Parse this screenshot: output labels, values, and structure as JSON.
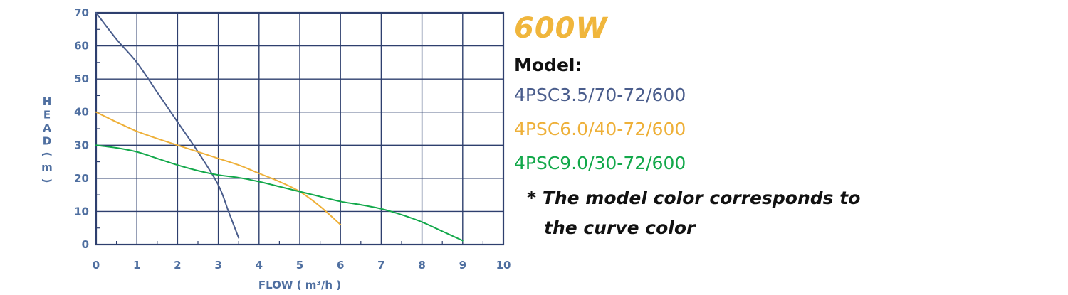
{
  "chart_data": {
    "type": "line",
    "xlabel": "FLOW ( m³/h )",
    "ylabel": "HEAD ( m )",
    "xlim": [
      0,
      10
    ],
    "ylim": [
      0,
      70
    ],
    "xticks": [
      0,
      1,
      2,
      3,
      4,
      5,
      6,
      7,
      8,
      9,
      10
    ],
    "yticks": [
      0,
      10,
      20,
      30,
      40,
      50,
      60,
      70
    ],
    "grid": true,
    "series": [
      {
        "name": "4PSC3.5/70-72/600",
        "color": "#4a5d8c",
        "points": [
          [
            0,
            70
          ],
          [
            0.5,
            62
          ],
          [
            1,
            55
          ],
          [
            1.5,
            46
          ],
          [
            2,
            37
          ],
          [
            2.5,
            28
          ],
          [
            3,
            18
          ],
          [
            3.25,
            10
          ],
          [
            3.5,
            2
          ]
        ]
      },
      {
        "name": "4PSC6.0/40-72/600",
        "color": "#eeb039",
        "points": [
          [
            0,
            40
          ],
          [
            0.5,
            37
          ],
          [
            1,
            34.2
          ],
          [
            1.5,
            32
          ],
          [
            2,
            30
          ],
          [
            2.5,
            28
          ],
          [
            3,
            26
          ],
          [
            3.5,
            24
          ],
          [
            4,
            21.5
          ],
          [
            4.5,
            19
          ],
          [
            5,
            16
          ],
          [
            5.5,
            11.5
          ],
          [
            6,
            6
          ]
        ]
      },
      {
        "name": "4PSC9.0/30-72/600",
        "color": "#12a84a",
        "points": [
          [
            0,
            30
          ],
          [
            0.5,
            29.2
          ],
          [
            1,
            28
          ],
          [
            1.5,
            26
          ],
          [
            2,
            24
          ],
          [
            2.5,
            22.3
          ],
          [
            3,
            21
          ],
          [
            3.5,
            20.2
          ],
          [
            4,
            19
          ],
          [
            4.5,
            17.5
          ],
          [
            5,
            16
          ],
          [
            5.5,
            14.5
          ],
          [
            6,
            13
          ],
          [
            6.5,
            12
          ],
          [
            7,
            10.8
          ],
          [
            7.5,
            9
          ],
          [
            8,
            6.8
          ],
          [
            8.5,
            4
          ],
          [
            9,
            1.2
          ]
        ]
      }
    ]
  },
  "header": {
    "power": "600W",
    "model_label": "Model:",
    "models": [
      {
        "text": "4PSC3.5/70-72/600",
        "color": "#4a5d8c"
      },
      {
        "text": "4PSC6.0/40-72/600",
        "color": "#eeb039"
      },
      {
        "text": "4PSC9.0/30-72/600",
        "color": "#12a84a"
      }
    ],
    "note_line1": "* The model color corresponds to",
    "note_line2": "the curve color"
  },
  "colors": {
    "axis": "#2e3f6e",
    "grid": "#2e3f6e",
    "tick_label": "#4f6fa0",
    "power": "#f0b63c"
  }
}
